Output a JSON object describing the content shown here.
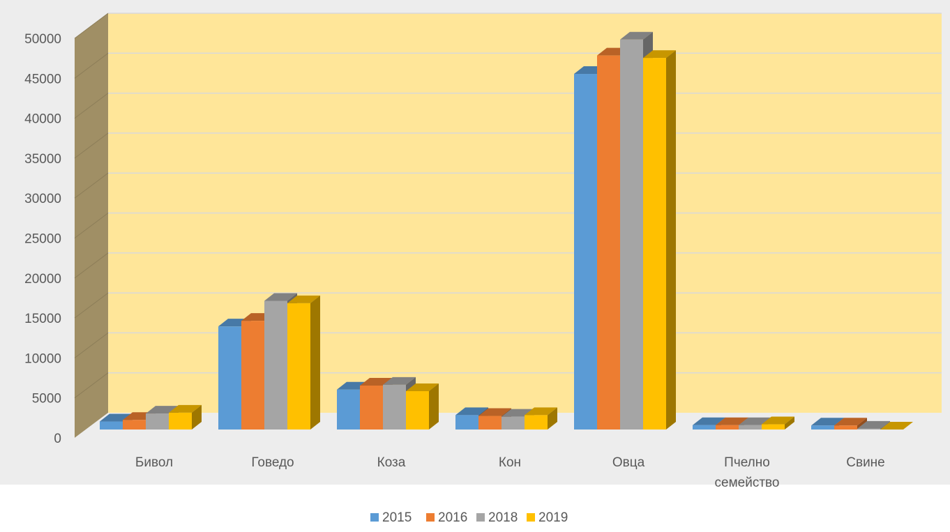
{
  "chart_data": {
    "type": "bar",
    "style": "3d-clustered-column",
    "categories": [
      "Бивол",
      "Говедо",
      "Коза",
      "Кон",
      "Овца",
      "Пчелно семейство",
      "Свине"
    ],
    "category_lines": [
      [
        "Бивол"
      ],
      [
        "Говедо"
      ],
      [
        "Коза"
      ],
      [
        "Кон"
      ],
      [
        "Овца"
      ],
      [
        "Пчелно",
        "семейство"
      ],
      [
        "Свине"
      ]
    ],
    "series": [
      {
        "name": "2015",
        "color": "#5B9BD5",
        "values": [
          1000,
          12900,
          5000,
          1800,
          44500,
          550,
          500
        ]
      },
      {
        "name": "2016",
        "color": "#ED7D31",
        "values": [
          1200,
          13600,
          5500,
          1700,
          46800,
          550,
          500
        ]
      },
      {
        "name": "2018",
        "color": "#A5A5A5",
        "values": [
          2000,
          16100,
          5600,
          1600,
          48800,
          550,
          100
        ]
      },
      {
        "name": "2019",
        "color": "#FFC000",
        "values": [
          2100,
          15800,
          4800,
          1800,
          46500,
          650,
          0
        ]
      }
    ],
    "y_ticks": [
      "0",
      "5000",
      "10000",
      "15000",
      "20000",
      "25000",
      "30000",
      "35000",
      "40000",
      "45000",
      "50000"
    ],
    "ylim": [
      0,
      50000
    ],
    "grid": true,
    "legend_position": "bottom",
    "colors": {
      "back_wall": "#FFE699",
      "side_wall": "#A08F65",
      "floor": "#EDEDED",
      "gridline": "#D9D9D9",
      "plot_area_bg": "#EDEDED"
    }
  }
}
